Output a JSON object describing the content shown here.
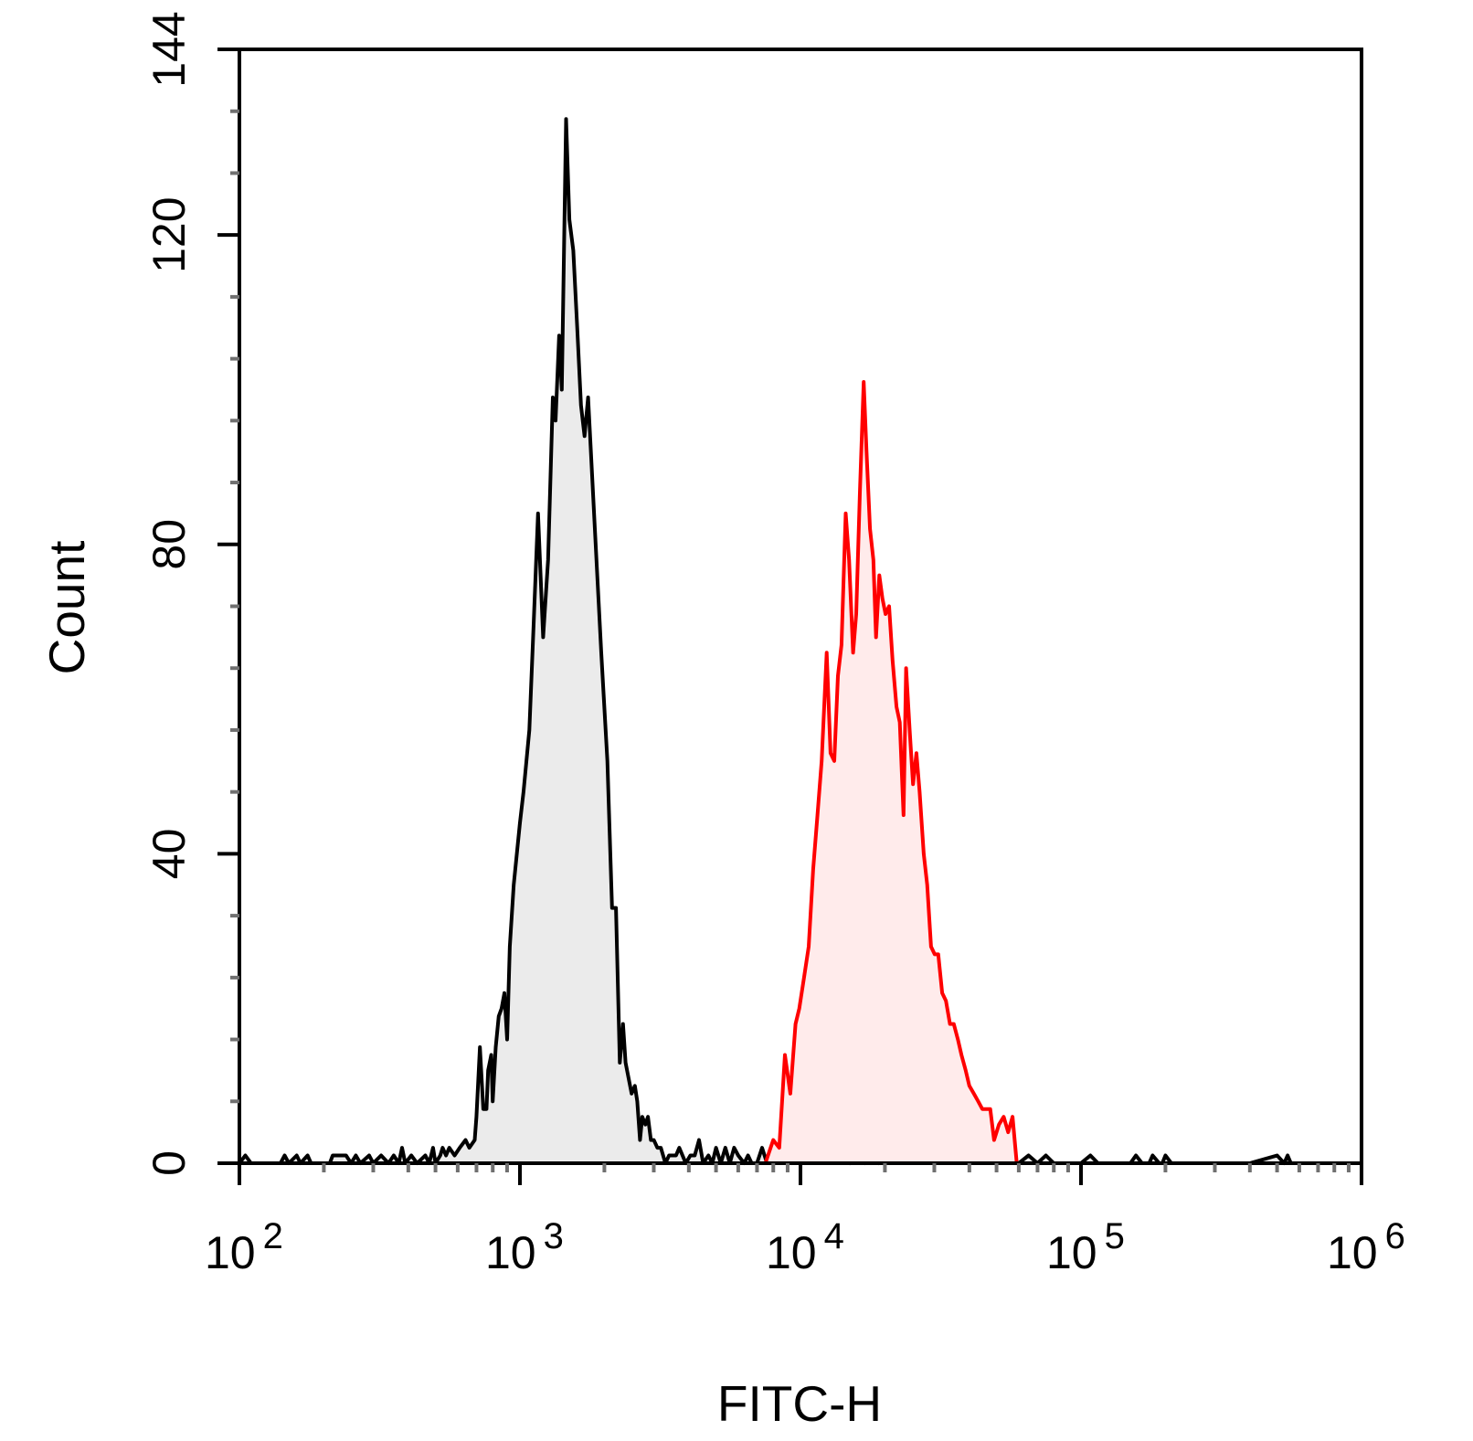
{
  "chart_data": {
    "type": "area",
    "title": "",
    "xlabel": "FITC-H",
    "ylabel": "Count",
    "xscale": "log",
    "xlim": [
      100,
      1000000
    ],
    "ylim": [
      0,
      144
    ],
    "grid": false,
    "legend": "none",
    "y_ticks": [
      {
        "value": 0,
        "label": "0"
      },
      {
        "value": 40,
        "label": "40"
      },
      {
        "value": 80,
        "label": "80"
      },
      {
        "value": 120,
        "label": "120"
      },
      {
        "value": 144,
        "label": "144"
      }
    ],
    "x_ticks": [
      {
        "value": 100,
        "base": "10",
        "exp": "2"
      },
      {
        "value": 1000,
        "base": "10",
        "exp": "3"
      },
      {
        "value": 10000,
        "base": "10",
        "exp": "4"
      },
      {
        "value": 100000,
        "base": "10",
        "exp": "5"
      },
      {
        "value": 1000000,
        "base": "10",
        "exp": "6"
      }
    ],
    "series": [
      {
        "color": "#000000",
        "fill": "#ebebeb",
        "points": [
          [
            100,
            0
          ],
          [
            105,
            1
          ],
          [
            110,
            0
          ],
          [
            140,
            0
          ],
          [
            145,
            1
          ],
          [
            150,
            0
          ],
          [
            160,
            1
          ],
          [
            165,
            0
          ],
          [
            175,
            1
          ],
          [
            180,
            0
          ],
          [
            210,
            0
          ],
          [
            215,
            1
          ],
          [
            240,
            1
          ],
          [
            250,
            0
          ],
          [
            260,
            1
          ],
          [
            270,
            0
          ],
          [
            290,
            1
          ],
          [
            300,
            0
          ],
          [
            320,
            1
          ],
          [
            340,
            0
          ],
          [
            355,
            1
          ],
          [
            370,
            0
          ],
          [
            380,
            2
          ],
          [
            390,
            0
          ],
          [
            410,
            1
          ],
          [
            430,
            0
          ],
          [
            460,
            1
          ],
          [
            475,
            0
          ],
          [
            490,
            2
          ],
          [
            500,
            0
          ],
          [
            520,
            1
          ],
          [
            530,
            2
          ],
          [
            545,
            1
          ],
          [
            560,
            2
          ],
          [
            585,
            1
          ],
          [
            610,
            2
          ],
          [
            640,
            3
          ],
          [
            660,
            2
          ],
          [
            690,
            3
          ],
          [
            700,
            6
          ],
          [
            720,
            15
          ],
          [
            740,
            7
          ],
          [
            760,
            7
          ],
          [
            770,
            12
          ],
          [
            790,
            14
          ],
          [
            800,
            8
          ],
          [
            820,
            15
          ],
          [
            840,
            19
          ],
          [
            860,
            20
          ],
          [
            880,
            22
          ],
          [
            900,
            16
          ],
          [
            920,
            28
          ],
          [
            950,
            36
          ],
          [
            1000,
            44
          ],
          [
            1030,
            48
          ],
          [
            1080,
            56
          ],
          [
            1120,
            70
          ],
          [
            1160,
            84
          ],
          [
            1210,
            68
          ],
          [
            1260,
            78
          ],
          [
            1310,
            99
          ],
          [
            1340,
            96
          ],
          [
            1380,
            107
          ],
          [
            1410,
            100
          ],
          [
            1460,
            135
          ],
          [
            1500,
            122
          ],
          [
            1550,
            118
          ],
          [
            1600,
            108
          ],
          [
            1650,
            98
          ],
          [
            1700,
            94
          ],
          [
            1750,
            99
          ],
          [
            1850,
            82
          ],
          [
            1950,
            66
          ],
          [
            2050,
            52
          ],
          [
            2130,
            33
          ],
          [
            2200,
            33
          ],
          [
            2270,
            13
          ],
          [
            2330,
            18
          ],
          [
            2380,
            13
          ],
          [
            2440,
            11
          ],
          [
            2500,
            9
          ],
          [
            2570,
            10
          ],
          [
            2620,
            8
          ],
          [
            2680,
            3
          ],
          [
            2730,
            6
          ],
          [
            2800,
            5
          ],
          [
            2860,
            6
          ],
          [
            2930,
            3
          ],
          [
            3000,
            3
          ],
          [
            3090,
            2
          ],
          [
            3180,
            2
          ],
          [
            3300,
            0
          ],
          [
            3400,
            1
          ],
          [
            3600,
            1
          ],
          [
            3700,
            2
          ],
          [
            3900,
            0
          ],
          [
            4050,
            1
          ],
          [
            4200,
            1
          ],
          [
            4350,
            3
          ],
          [
            4500,
            0
          ],
          [
            4700,
            1
          ],
          [
            4850,
            0
          ],
          [
            5000,
            2
          ],
          [
            5200,
            0
          ],
          [
            5400,
            2
          ],
          [
            5600,
            0
          ],
          [
            5800,
            2
          ],
          [
            6000,
            1
          ],
          [
            6300,
            0
          ],
          [
            6500,
            1
          ],
          [
            6700,
            0
          ],
          [
            7000,
            0
          ],
          [
            7300,
            2
          ],
          [
            7600,
            0
          ],
          [
            8000,
            0
          ],
          [
            8500,
            0
          ],
          [
            9000,
            2
          ],
          [
            9500,
            0
          ],
          [
            10200,
            0
          ],
          [
            11000,
            1
          ],
          [
            12000,
            0
          ],
          [
            13000,
            0
          ],
          [
            14000,
            1
          ],
          [
            15000,
            0
          ],
          [
            16000,
            2
          ],
          [
            17000,
            0
          ],
          [
            18000,
            1
          ],
          [
            19000,
            0
          ],
          [
            20000,
            1
          ],
          [
            21000,
            0
          ],
          [
            23000,
            0
          ],
          [
            24000,
            2
          ],
          [
            25000,
            0
          ],
          [
            27000,
            1
          ],
          [
            29000,
            0
          ],
          [
            32000,
            0
          ],
          [
            35000,
            0
          ],
          [
            40000,
            0
          ],
          [
            50000,
            0
          ],
          [
            60000,
            0
          ],
          [
            65000,
            1
          ],
          [
            70000,
            0
          ],
          [
            75000,
            1
          ],
          [
            80000,
            0
          ],
          [
            100000,
            0
          ],
          [
            108000,
            1
          ],
          [
            115000,
            0
          ],
          [
            150000,
            0
          ],
          [
            157000,
            1
          ],
          [
            165000,
            0
          ],
          [
            175000,
            0
          ],
          [
            180000,
            1
          ],
          [
            190000,
            0
          ],
          [
            195000,
            0
          ],
          [
            200000,
            1
          ],
          [
            210000,
            0
          ],
          [
            400000,
            0
          ],
          [
            500000,
            1
          ],
          [
            530000,
            0
          ],
          [
            545000,
            1
          ],
          [
            560000,
            0
          ],
          [
            1000000,
            0
          ]
        ]
      },
      {
        "color": "#ff0000",
        "fill": "#ffebeb",
        "points": [
          [
            7500,
            0
          ],
          [
            8000,
            3
          ],
          [
            8400,
            2
          ],
          [
            8800,
            14
          ],
          [
            9200,
            9
          ],
          [
            9600,
            18
          ],
          [
            9900,
            20
          ],
          [
            10300,
            24
          ],
          [
            10700,
            28
          ],
          [
            11100,
            38
          ],
          [
            11500,
            45
          ],
          [
            11900,
            52
          ],
          [
            12400,
            66
          ],
          [
            12800,
            53
          ],
          [
            13200,
            52
          ],
          [
            13600,
            63
          ],
          [
            14000,
            67
          ],
          [
            14500,
            84
          ],
          [
            14900,
            78
          ],
          [
            15400,
            66
          ],
          [
            15800,
            71
          ],
          [
            16300,
            87
          ],
          [
            16800,
            101
          ],
          [
            17200,
            92
          ],
          [
            17700,
            82
          ],
          [
            18200,
            78
          ],
          [
            18600,
            68
          ],
          [
            19100,
            76
          ],
          [
            19600,
            73
          ],
          [
            20100,
            71
          ],
          [
            20700,
            72
          ],
          [
            21300,
            65
          ],
          [
            22000,
            59
          ],
          [
            22600,
            57
          ],
          [
            23300,
            45
          ],
          [
            23800,
            64
          ],
          [
            24500,
            56
          ],
          [
            25200,
            49
          ],
          [
            25900,
            53
          ],
          [
            26600,
            48
          ],
          [
            27500,
            40
          ],
          [
            28300,
            36
          ],
          [
            29200,
            28
          ],
          [
            30100,
            27
          ],
          [
            31000,
            27
          ],
          [
            32000,
            22
          ],
          [
            33000,
            21
          ],
          [
            34100,
            18
          ],
          [
            35200,
            18
          ],
          [
            36400,
            16
          ],
          [
            37500,
            14
          ],
          [
            38800,
            12
          ],
          [
            40000,
            10
          ],
          [
            41500,
            9
          ],
          [
            43000,
            8
          ],
          [
            44500,
            7
          ],
          [
            46000,
            7
          ],
          [
            47500,
            7
          ],
          [
            49000,
            3
          ],
          [
            51000,
            5
          ],
          [
            53000,
            6
          ],
          [
            55000,
            4
          ],
          [
            57000,
            6
          ],
          [
            59000,
            0
          ]
        ]
      }
    ]
  }
}
